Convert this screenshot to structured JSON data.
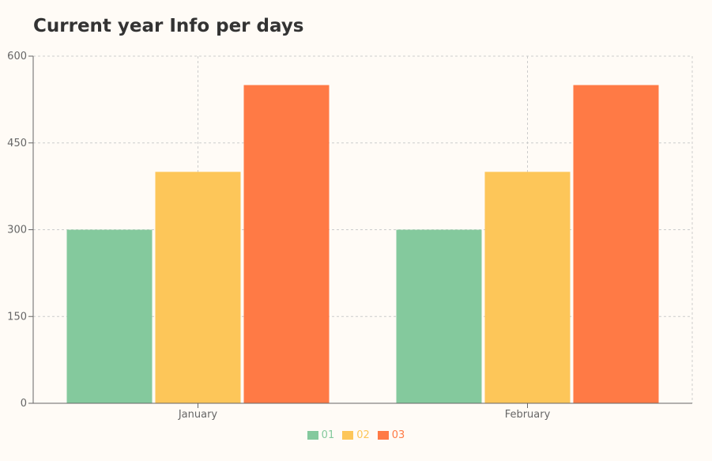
{
  "chart_data": {
    "type": "bar",
    "title": "Current year Info per days",
    "categories": [
      "January",
      "February"
    ],
    "series": [
      {
        "name": "01",
        "values": [
          300,
          300
        ],
        "color": "#84c99d"
      },
      {
        "name": "02",
        "values": [
          400,
          400
        ],
        "color": "#fdc659"
      },
      {
        "name": "03",
        "values": [
          550,
          550
        ],
        "color": "#ff7a45"
      }
    ],
    "ylim": [
      0,
      600
    ],
    "yticks": [
      0,
      150,
      300,
      450,
      600
    ],
    "grid": true,
    "legend_position": "bottom"
  }
}
